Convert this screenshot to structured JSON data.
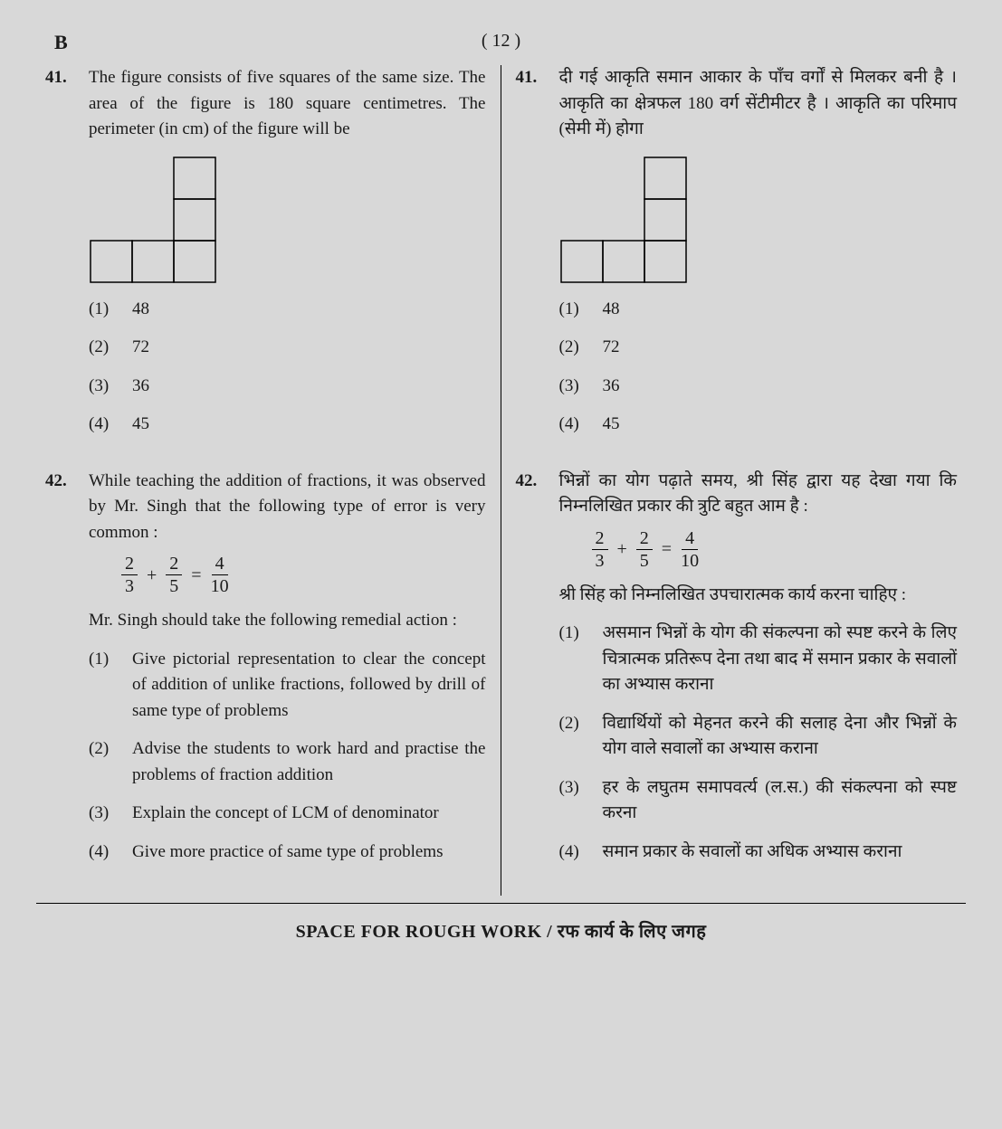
{
  "page": {
    "series": "B",
    "number": "( 12 )"
  },
  "q41": {
    "num_en": "41.",
    "num_hi": "41.",
    "text_en": "The figure consists of five squares of the same size. The area of the figure is 180 square centimetres. The perimeter (in cm) of the figure will be",
    "text_hi": "दी गई आकृति समान आकार के पाँच वर्गों से मिलकर बनी है । आकृति का क्षेत्रफल 180 वर्ग सेंटीमीटर है । आकृति का परिमाप (सेमी में) होगा",
    "figure": {
      "squareSide": 46,
      "strokeColor": "#000000",
      "strokeWidth": 1.5,
      "cells": [
        {
          "r": 0,
          "c": 2
        },
        {
          "r": 1,
          "c": 2
        },
        {
          "r": 2,
          "c": 0
        },
        {
          "r": 2,
          "c": 1
        },
        {
          "r": 2,
          "c": 2
        }
      ]
    },
    "options": [
      {
        "num": "(1)",
        "text": "48"
      },
      {
        "num": "(2)",
        "text": "72"
      },
      {
        "num": "(3)",
        "text": "36"
      },
      {
        "num": "(4)",
        "text": "45"
      }
    ]
  },
  "q42": {
    "num_en": "42.",
    "num_hi": "42.",
    "text_en_1": "While teaching the addition of fractions, it was observed by Mr. Singh that the following type of error is very common :",
    "text_en_2": "Mr. Singh should take the following remedial action :",
    "text_hi_1": "भिन्नों का योग पढ़ाते समय, श्री सिंह द्वारा यह देखा गया कि निम्नलिखित प्रकार की त्रुटि बहुत आम है :",
    "text_hi_2": "श्री सिंह को निम्नलिखित उपचारात्मक कार्य करना चाहिए :",
    "math": {
      "f1": {
        "n": "2",
        "d": "3"
      },
      "plus": "+",
      "f2": {
        "n": "2",
        "d": "5"
      },
      "eq": "=",
      "f3": {
        "n": "4",
        "d": "10"
      }
    },
    "options_en": [
      {
        "num": "(1)",
        "text": "Give pictorial representation to clear the concept of addition of unlike fractions, followed by drill of same type of problems"
      },
      {
        "num": "(2)",
        "text": "Advise the students to work hard and practise the problems of fraction addition"
      },
      {
        "num": "(3)",
        "text": "Explain the concept of LCM of denominator"
      },
      {
        "num": "(4)",
        "text": "Give more practice of same type of problems"
      }
    ],
    "options_hi": [
      {
        "num": "(1)",
        "text": "असमान भिन्नों के योग की संकल्पना को स्पष्ट करने के लिए चित्रात्मक प्रतिरूप देना तथा बाद में समान प्रकार के सवालों का अभ्यास कराना"
      },
      {
        "num": "(2)",
        "text": "विद्यार्थियों को मेहनत करने की सलाह देना और भिन्नों के योग वाले सवालों का अभ्यास कराना"
      },
      {
        "num": "(3)",
        "text": "हर के लघुतम समापवर्त्य (ल.स.) की संकल्पना को स्पष्ट करना"
      },
      {
        "num": "(4)",
        "text": "समान प्रकार के सवालों का अधिक अभ्यास कराना"
      }
    ]
  },
  "footer": {
    "text": "SPACE FOR ROUGH WORK / रफ कार्य के लिए जगह"
  }
}
